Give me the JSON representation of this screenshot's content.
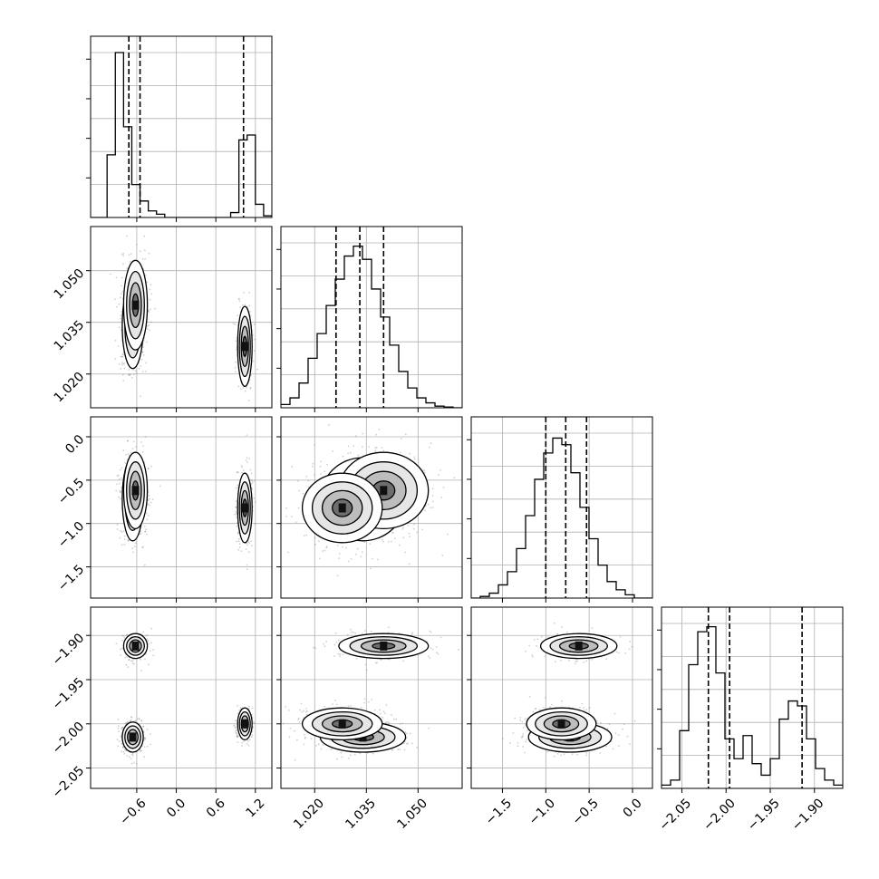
{
  "chart_data": {
    "type": "corner",
    "parameters": [
      {
        "ticks": [
          -0.6,
          0.0,
          0.6,
          1.2
        ],
        "tick_labels": [
          "−0.6",
          "0.0",
          "0.6",
          "1.2"
        ],
        "range": [
          -1.3,
          1.45
        ],
        "quantiles": [
          -0.72,
          -0.55,
          1.02
        ]
      },
      {
        "ticks": [
          1.02,
          1.035,
          1.05
        ],
        "tick_labels": [
          "1.020",
          "1.035",
          "1.050"
        ],
        "range": [
          1.0102,
          1.0628
        ],
        "quantiles": [
          1.0262,
          1.0331,
          1.04
        ]
      },
      {
        "ticks": [
          -1.5,
          -1.0,
          -0.5,
          0.0
        ],
        "tick_labels": [
          "−1.5",
          "−1.0",
          "−0.5",
          "0.0"
        ],
        "range": [
          -1.86,
          0.23
        ],
        "quantiles": [
          -1.0,
          -0.77,
          -0.53
        ]
      },
      {
        "ticks": [
          -2.05,
          -2.0,
          -1.95,
          -1.9
        ],
        "tick_labels": [
          "−2.05",
          "−2.00",
          "−1.95",
          "−1.90"
        ],
        "range": [
          -2.073,
          -1.868
        ],
        "quantiles": [
          -2.02,
          -1.996,
          -1.914
        ]
      }
    ],
    "histograms": [
      {
        "index": 0,
        "values": [
          0,
          0,
          0.38,
          1.0,
          0.55,
          0.2,
          0.1,
          0.04,
          0.02,
          0,
          0,
          0,
          0,
          0,
          0,
          0,
          0,
          0.03,
          0.47,
          0.5,
          0.08,
          0.01
        ]
      },
      {
        "index": 1,
        "values": [
          0.02,
          0.06,
          0.15,
          0.3,
          0.45,
          0.62,
          0.78,
          0.92,
          0.98,
          0.9,
          0.72,
          0.55,
          0.38,
          0.22,
          0.12,
          0.06,
          0.03,
          0.01,
          0.005,
          0
        ]
      },
      {
        "index": 2,
        "values": [
          0,
          0.01,
          0.03,
          0.08,
          0.16,
          0.3,
          0.5,
          0.72,
          0.88,
          0.97,
          0.93,
          0.76,
          0.55,
          0.36,
          0.2,
          0.1,
          0.05,
          0.02,
          0,
          0
        ]
      },
      {
        "index": 3,
        "values": [
          0.02,
          0.05,
          0.35,
          0.75,
          0.95,
          0.98,
          0.7,
          0.3,
          0.18,
          0.32,
          0.15,
          0.08,
          0.18,
          0.42,
          0.53,
          0.5,
          0.3,
          0.12,
          0.05,
          0.02
        ]
      }
    ],
    "grid": true,
    "contours": true
  }
}
